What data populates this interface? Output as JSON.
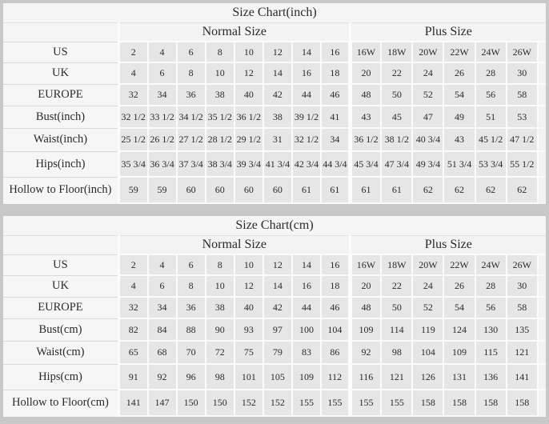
{
  "page": {
    "background_color": "#c8c8c8",
    "panel_color": "#f5f5f5",
    "data_cell_color": "#e6e6e6",
    "border_color": "#fbfbfb",
    "text_color": "#2a2a2a"
  },
  "tables": [
    {
      "id": "inch",
      "title": "Size Chart(inch)",
      "groups": [
        {
          "label": "Normal Size",
          "span": 8
        },
        {
          "label": "Plus Size",
          "span": 6
        }
      ],
      "rows": [
        {
          "label": "US",
          "values": [
            "2",
            "4",
            "6",
            "8",
            "10",
            "12",
            "14",
            "16",
            "16W",
            "18W",
            "20W",
            "22W",
            "24W",
            "26W"
          ]
        },
        {
          "label": "UK",
          "values": [
            "4",
            "6",
            "8",
            "10",
            "12",
            "14",
            "16",
            "18",
            "20",
            "22",
            "24",
            "26",
            "28",
            "30"
          ]
        },
        {
          "label": "EUROPE",
          "values": [
            "32",
            "34",
            "36",
            "38",
            "40",
            "42",
            "44",
            "46",
            "48",
            "50",
            "52",
            "54",
            "56",
            "58"
          ]
        },
        {
          "label": "Bust(inch)",
          "values": [
            "32 1/2",
            "33 1/2",
            "34 1/2",
            "35 1/2",
            "36 1/2",
            "38",
            "39 1/2",
            "41",
            "43",
            "45",
            "47",
            "49",
            "51",
            "53"
          ]
        },
        {
          "label": "Waist(inch)",
          "values": [
            "25 1/2",
            "26 1/2",
            "27 1/2",
            "28 1/2",
            "29 1/2",
            "31",
            "32 1/2",
            "34",
            "36 1/2",
            "38 1/2",
            "40 3/4",
            "43",
            "45 1/2",
            "47 1/2"
          ]
        },
        {
          "label": "Hips(inch)",
          "values": [
            "35 3/4",
            "36 3/4",
            "37 3/4",
            "38 3/4",
            "39 3/4",
            "41 3/4",
            "42 3/4",
            "44 3/4",
            "45 3/4",
            "47 3/4",
            "49 3/4",
            "51 3/4",
            "53 3/4",
            "55 1/2"
          ]
        },
        {
          "label": "Hollow to Floor(inch)",
          "values": [
            "59",
            "59",
            "60",
            "60",
            "60",
            "60",
            "61",
            "61",
            "61",
            "61",
            "62",
            "62",
            "62",
            "62"
          ]
        }
      ]
    },
    {
      "id": "cm",
      "title": "Size Chart(cm)",
      "groups": [
        {
          "label": "Normal Size",
          "span": 8
        },
        {
          "label": "Plus Size",
          "span": 6
        }
      ],
      "rows": [
        {
          "label": "US",
          "values": [
            "2",
            "4",
            "6",
            "8",
            "10",
            "12",
            "14",
            "16",
            "16W",
            "18W",
            "20W",
            "22W",
            "24W",
            "26W"
          ]
        },
        {
          "label": "UK",
          "values": [
            "4",
            "6",
            "8",
            "10",
            "12",
            "14",
            "16",
            "18",
            "20",
            "22",
            "24",
            "26",
            "28",
            "30"
          ]
        },
        {
          "label": "EUROPE",
          "values": [
            "32",
            "34",
            "36",
            "38",
            "40",
            "42",
            "44",
            "46",
            "48",
            "50",
            "52",
            "54",
            "56",
            "58"
          ]
        },
        {
          "label": "Bust(cm)",
          "values": [
            "82",
            "84",
            "88",
            "90",
            "93",
            "97",
            "100",
            "104",
            "109",
            "114",
            "119",
            "124",
            "130",
            "135"
          ]
        },
        {
          "label": "Waist(cm)",
          "values": [
            "65",
            "68",
            "70",
            "72",
            "75",
            "79",
            "83",
            "86",
            "92",
            "98",
            "104",
            "109",
            "115",
            "121"
          ]
        },
        {
          "label": "Hips(cm)",
          "values": [
            "91",
            "92",
            "96",
            "98",
            "101",
            "105",
            "109",
            "112",
            "116",
            "121",
            "126",
            "131",
            "136",
            "141"
          ]
        },
        {
          "label": "Hollow to Floor(cm)",
          "values": [
            "141",
            "147",
            "150",
            "150",
            "152",
            "152",
            "155",
            "155",
            "155",
            "155",
            "158",
            "158",
            "158",
            "158"
          ]
        }
      ]
    }
  ]
}
